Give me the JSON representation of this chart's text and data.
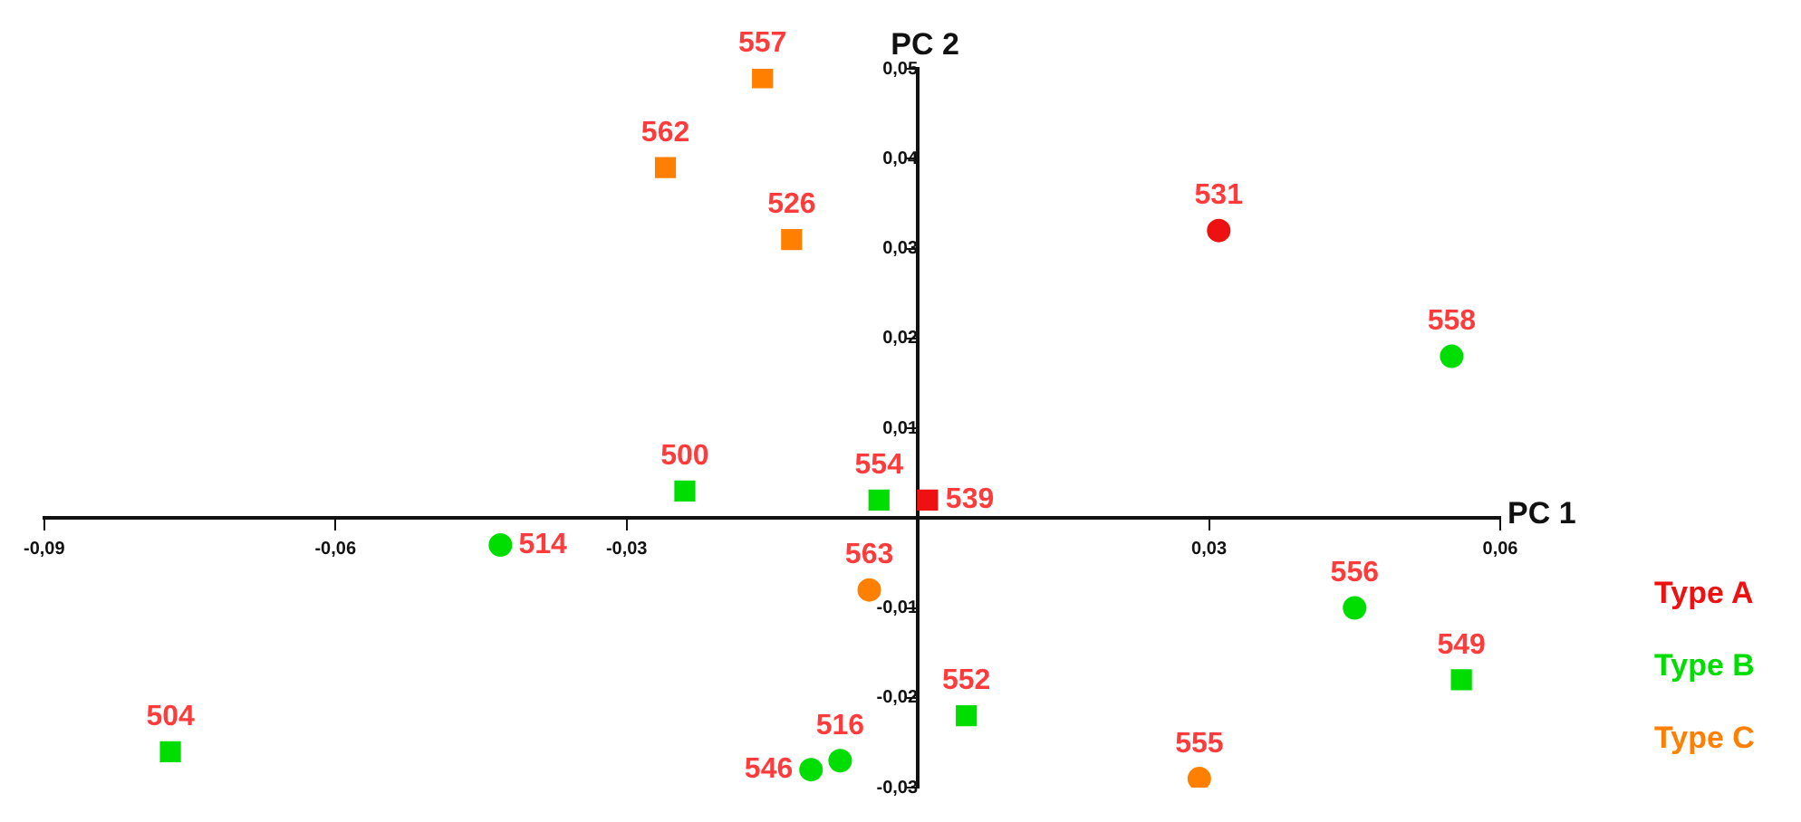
{
  "chart_data": {
    "type": "scatter",
    "xlabel": "PC 1",
    "ylabel": "PC 2",
    "legend": "right",
    "grid": false,
    "xlim": [
      -0.09,
      0.06
    ],
    "ylim": [
      -0.03,
      0.05
    ],
    "xticks": [
      {
        "value": -0.09,
        "label": "-0,09"
      },
      {
        "value": -0.06,
        "label": "-0,06"
      },
      {
        "value": -0.03,
        "label": "-0,03"
      },
      {
        "value": 0.03,
        "label": "0,03"
      },
      {
        "value": 0.06,
        "label": "0,06"
      }
    ],
    "yticks": [
      {
        "value": -0.03,
        "label": "-0,03"
      },
      {
        "value": -0.02,
        "label": "-0,02"
      },
      {
        "value": -0.01,
        "label": "-0,01"
      },
      {
        "value": 0.01,
        "label": "0,01"
      },
      {
        "value": 0.02,
        "label": "0,02"
      },
      {
        "value": 0.03,
        "label": "0,03"
      },
      {
        "value": 0.04,
        "label": "0,04"
      },
      {
        "value": 0.05,
        "label": "0,05"
      }
    ],
    "series": [
      {
        "name": "Type A",
        "color": "#ee1111",
        "marker": "circle",
        "x": [
          0.031
        ],
        "values": [
          0.032
        ]
      },
      {
        "color": "#ee1111",
        "marker": "square",
        "x": [
          0.001
        ],
        "values": [
          0.002
        ]
      },
      {
        "name": "Type B",
        "color": "#00dd00",
        "marker": "circle",
        "x": [
          0.055,
          -0.043,
          0.045,
          -0.008,
          -0.011
        ],
        "values": [
          0.018,
          -0.003,
          -0.01,
          -0.027,
          -0.028
        ]
      },
      {
        "color": "#00dd00",
        "marker": "square",
        "x": [
          -0.024,
          -0.004,
          0.056,
          0.005,
          -0.077
        ],
        "values": [
          0.003,
          0.002,
          -0.018,
          -0.022,
          -0.026
        ]
      },
      {
        "name": "Type C",
        "color": "#ff8000",
        "marker": "square",
        "x": [
          -0.016,
          -0.026,
          -0.013
        ],
        "values": [
          0.049,
          0.039,
          0.031
        ]
      },
      {
        "color": "#ff8000",
        "marker": "circle",
        "x": [
          -0.005,
          0.029
        ],
        "values": [
          -0.008,
          -0.029
        ]
      }
    ],
    "annotations": [
      {
        "text": "531",
        "x": 0.031,
        "y": 0.032
      },
      {
        "text": "539",
        "x": 0.001,
        "y": 0.002
      },
      {
        "text": "558",
        "x": 0.055,
        "y": 0.018
      },
      {
        "text": "514",
        "x": -0.043,
        "y": -0.003
      },
      {
        "text": "556",
        "x": 0.045,
        "y": -0.01
      },
      {
        "text": "516",
        "x": -0.008,
        "y": -0.027
      },
      {
        "text": "546",
        "x": -0.011,
        "y": -0.028
      },
      {
        "text": "500",
        "x": -0.024,
        "y": 0.003
      },
      {
        "text": "554",
        "x": -0.004,
        "y": 0.002
      },
      {
        "text": "549",
        "x": 0.056,
        "y": -0.018
      },
      {
        "text": "552",
        "x": 0.005,
        "y": -0.022
      },
      {
        "text": "504",
        "x": -0.077,
        "y": -0.026
      },
      {
        "text": "557",
        "x": -0.016,
        "y": 0.049
      },
      {
        "text": "562",
        "x": -0.026,
        "y": 0.039
      },
      {
        "text": "526",
        "x": -0.013,
        "y": 0.031
      },
      {
        "text": "563",
        "x": -0.005,
        "y": -0.008
      },
      {
        "text": "555",
        "x": 0.029,
        "y": -0.029
      }
    ]
  }
}
